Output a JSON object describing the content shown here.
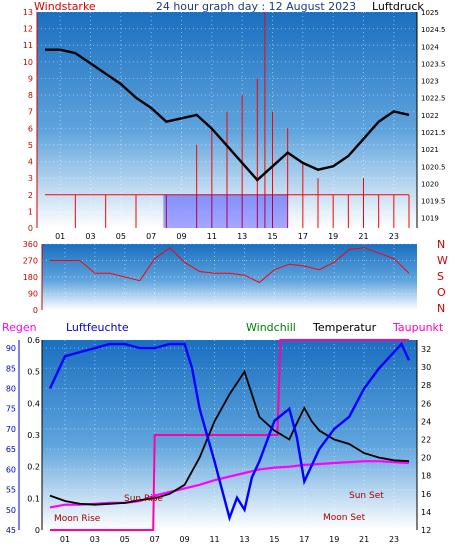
{
  "colors": {
    "wind_speed": "#ff0000",
    "wind_gust": "#0000ff",
    "pressure": "#000000",
    "wind_dir": "#ff0000",
    "humidity": "#0000ff",
    "windchill": "#008000",
    "temperature": "#000000",
    "dewpoint": "#ff00ff",
    "rain": "#ff00ff",
    "bg_top": "#1a6fc0",
    "bg_bottom": "#ffffff"
  },
  "header": {
    "title": "24 hour graph day : 12 August 2023",
    "left_label": "Windstarke",
    "right_label": "Luftdruck"
  },
  "labels": {
    "regen": "Regen",
    "luftfeuchte": "Luftfeuchte",
    "windchill": "Windchill",
    "temperatur": "Temperatur",
    "taupunkt": "Taupunkt",
    "sun_rise": "Sun Rise",
    "sun_set": "Sun Set",
    "moon_rise": "Moon Rise",
    "moon_set": "Moon Set",
    "compass": [
      "N",
      "W",
      "S",
      "O",
      "N"
    ]
  },
  "chart_data": [
    {
      "type": "line",
      "title": "24 hour graph day : 12 August 2023",
      "xticks": [
        "01",
        "03",
        "05",
        "07",
        "09",
        "11",
        "13",
        "15",
        "17",
        "19",
        "21",
        "23"
      ],
      "y_left": {
        "label": "Windstarke",
        "ticks": [
          0,
          1,
          2,
          3,
          4,
          5,
          6,
          7,
          8,
          9,
          10,
          11,
          12,
          13
        ],
        "range": [
          0,
          13
        ]
      },
      "y_right": {
        "label": "Luftdruck",
        "ticks": [
          1019,
          1019.5,
          1020,
          1020.5,
          1021,
          1021.5,
          1022,
          1022.5,
          1023,
          1023.5,
          1024,
          1024.5,
          1025
        ],
        "range": [
          1018.7,
          1025
        ]
      },
      "series": [
        {
          "name": "Luftdruck",
          "axis": "right",
          "x": [
            0,
            1,
            2,
            3,
            4,
            5,
            6,
            7,
            8,
            9,
            10,
            11,
            12,
            13,
            14,
            15,
            16,
            17,
            18,
            19,
            20,
            21,
            22,
            23,
            24
          ],
          "values": [
            1023.9,
            1023.9,
            1023.8,
            1023.5,
            1023.2,
            1022.9,
            1022.5,
            1022.2,
            1021.8,
            1021.9,
            1022.0,
            1021.6,
            1021.1,
            1020.6,
            1020.1,
            1020.5,
            1020.9,
            1020.6,
            1020.4,
            1020.5,
            1020.8,
            1021.3,
            1021.8,
            1022.1,
            1022.0
          ]
        },
        {
          "name": "Windstarke",
          "axis": "left",
          "x": [
            0,
            2,
            4,
            6,
            8,
            10,
            11,
            12,
            13,
            14,
            14.5,
            15,
            16,
            17,
            18,
            19,
            20,
            21,
            22,
            23,
            24
          ],
          "values": [
            0,
            2,
            2,
            2,
            2,
            5,
            6,
            7,
            8,
            9,
            13,
            7,
            6,
            4,
            3,
            2,
            2,
            3,
            2,
            2,
            2
          ]
        }
      ]
    },
    {
      "type": "line",
      "title": "",
      "xticks": [
        "01",
        "03",
        "05",
        "07",
        "09",
        "11",
        "13",
        "15",
        "17",
        "19",
        "21",
        "23"
      ],
      "y_left": {
        "ticks": [
          0,
          90,
          180,
          270,
          360
        ],
        "range": [
          0,
          360
        ]
      },
      "series": [
        {
          "name": "Windrichtung",
          "x": [
            0,
            1,
            2,
            3,
            4,
            5,
            6,
            7,
            8,
            9,
            10,
            11,
            12,
            13,
            14,
            15,
            16,
            17,
            18,
            19,
            20,
            21,
            22,
            23,
            24
          ],
          "values": [
            270,
            270,
            270,
            200,
            200,
            180,
            160,
            280,
            340,
            260,
            210,
            200,
            200,
            190,
            150,
            220,
            250,
            240,
            220,
            260,
            330,
            340,
            310,
            280,
            200
          ]
        }
      ]
    },
    {
      "type": "line",
      "title": "",
      "xticks": [
        "01",
        "03",
        "05",
        "07",
        "09",
        "11",
        "13",
        "15",
        "17",
        "19",
        "21",
        "23"
      ],
      "y_rain": {
        "label": "Regen",
        "ticks": [
          0,
          0.1,
          0.2,
          0.3,
          0.4,
          0.5,
          0.6
        ],
        "range": [
          0,
          0.6
        ]
      },
      "y_humidity": {
        "label": "Luftfeuchte",
        "ticks": [
          45,
          50,
          55,
          60,
          65,
          70,
          75,
          80,
          85,
          90
        ],
        "range": [
          45,
          92
        ]
      },
      "y_temp": {
        "label": "Temperatur",
        "ticks": [
          12,
          14,
          16,
          18,
          20,
          22,
          24,
          26,
          28,
          30,
          32
        ],
        "range": [
          12,
          33
        ]
      },
      "annotations": [
        "Sun Rise",
        "Sun Set",
        "Moon Rise",
        "Moon Set"
      ],
      "series": [
        {
          "name": "Luftfeuchte",
          "axis": "humidity",
          "x": [
            0,
            1,
            2,
            3,
            4,
            5,
            6,
            7,
            8,
            9,
            9.5,
            10,
            11,
            12,
            12.5,
            13,
            13.5,
            14,
            15,
            16,
            16.5,
            17,
            18,
            19,
            20,
            21,
            22,
            23,
            23.5,
            24
          ],
          "values": [
            80,
            88,
            89,
            90,
            91,
            91,
            90,
            90,
            91,
            91,
            85,
            75,
            62,
            48,
            53,
            50,
            58,
            62,
            72,
            75,
            68,
            57,
            65,
            70,
            73,
            80,
            85,
            89,
            91,
            87
          ]
        },
        {
          "name": "Temperatur",
          "axis": "temp",
          "x": [
            0,
            1,
            2,
            3,
            4,
            5,
            6,
            7,
            8,
            9,
            10,
            11,
            12,
            13,
            13.5,
            14,
            15,
            16,
            16.5,
            17,
            17.5,
            18,
            19,
            20,
            21,
            22,
            23,
            24
          ],
          "values": [
            15.8,
            15.2,
            14.9,
            14.8,
            14.9,
            15,
            15.3,
            15.5,
            16,
            17,
            20,
            24,
            27,
            29.5,
            27,
            24.5,
            23,
            22,
            23.8,
            25.5,
            24,
            23,
            22,
            21.5,
            20.5,
            20,
            19.7,
            19.6
          ]
        },
        {
          "name": "Taupunkt",
          "axis": "temp",
          "x": [
            0,
            1,
            2,
            3,
            4,
            5,
            6,
            7,
            8,
            9,
            10,
            11,
            12,
            13,
            14,
            15,
            16,
            17,
            18,
            19,
            20,
            21,
            22,
            23,
            24
          ],
          "values": [
            14.5,
            14.8,
            14.8,
            14.9,
            15.0,
            15.0,
            15.2,
            15.8,
            16.2,
            16.6,
            17.0,
            17.5,
            17.9,
            18.3,
            18.7,
            18.9,
            19.0,
            19.2,
            19.3,
            19.4,
            19.5,
            19.6,
            19.6,
            19.5,
            19.4
          ]
        },
        {
          "name": "Regen",
          "axis": "rain",
          "x": [
            0,
            6.9,
            7,
            15.2,
            15.4,
            24
          ],
          "values": [
            0,
            0,
            0.3,
            0.3,
            0.6,
            0.6
          ]
        }
      ]
    }
  ]
}
